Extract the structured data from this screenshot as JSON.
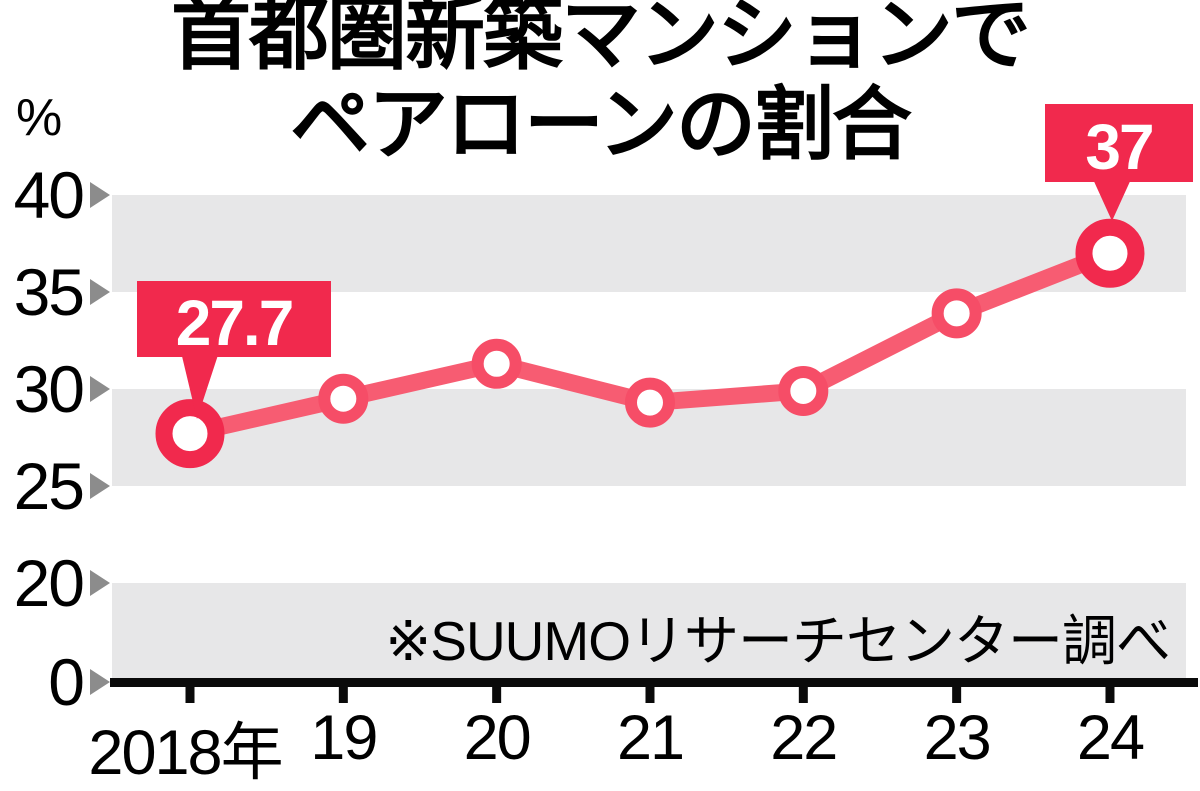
{
  "figure": {
    "title_line1": "首都圏新築マンションで",
    "title_line2": "ペアローンの割合",
    "unit_label": "%",
    "source_note": "※SUUMOリサーチセンター調べ"
  },
  "chart_data": {
    "type": "line",
    "title": "首都圏新築マンションでペアローンの割合",
    "ylabel": "%",
    "xlabel": "年",
    "categories": [
      "2018年",
      "19",
      "20",
      "21",
      "22",
      "23",
      "24"
    ],
    "series": [
      {
        "name": "ペアローンの割合",
        "values": [
          27.7,
          29.5,
          31.3,
          29.3,
          29.9,
          33.9,
          37.0
        ]
      }
    ],
    "point_labels": [
      {
        "index": 0,
        "text": "27.7"
      },
      {
        "index": 6,
        "text": "37"
      }
    ],
    "yticks": [
      40,
      35,
      30,
      25,
      20,
      0
    ],
    "gray_bands": [
      [
        35,
        40
      ],
      [
        25,
        30
      ],
      [
        0,
        20
      ]
    ],
    "axis_break": "y-axis compressed between 0 and 20 (no break glyph shown)",
    "legend": "none",
    "grid": "alternating horizontal gray bands",
    "source_note": "※SUUMOリサーチセンター調べ",
    "colors": {
      "accent_red": "#f1294d",
      "line_pink": "#f75c72",
      "mid_marker_pink": "#f64d67",
      "band_gray": "#e7e7e8",
      "arrow_gray": "#8c8c8c",
      "axis_black": "#0a0a0a",
      "label_text_white": "#ffffff"
    }
  }
}
